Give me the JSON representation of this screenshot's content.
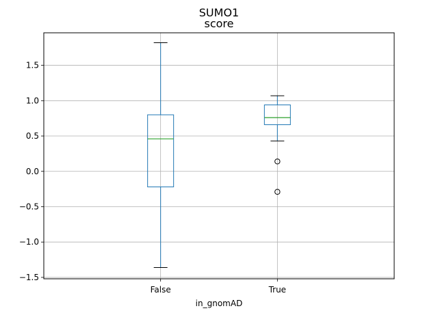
{
  "chart_data": {
    "type": "box",
    "suptitle": "SUMO1",
    "title": "score",
    "xlabel": "in_gnomAD",
    "ylabel": "",
    "ylim": [
      -1.52,
      1.96
    ],
    "yticks": [
      -1.5,
      -1.0,
      -0.5,
      0.0,
      0.5,
      1.0,
      1.5
    ],
    "ytick_labels": [
      "−1.5",
      "−1.0",
      "−0.5",
      "0.0",
      "0.5",
      "1.0",
      "1.5"
    ],
    "grid": true,
    "categories": [
      "False",
      "True"
    ],
    "boxes": [
      {
        "name": "False",
        "whisker_low": -1.36,
        "q1": -0.22,
        "median": 0.46,
        "q3": 0.8,
        "whisker_high": 1.82,
        "outliers": []
      },
      {
        "name": "True",
        "whisker_low": 0.43,
        "q1": 0.66,
        "median": 0.76,
        "q3": 0.94,
        "whisker_high": 1.07,
        "outliers": [
          0.14,
          -0.29
        ]
      }
    ],
    "colors": {
      "box": "#1f77b4",
      "median": "#2ca02c",
      "grid": "#b0b0b0",
      "outlier": "#000000"
    }
  }
}
